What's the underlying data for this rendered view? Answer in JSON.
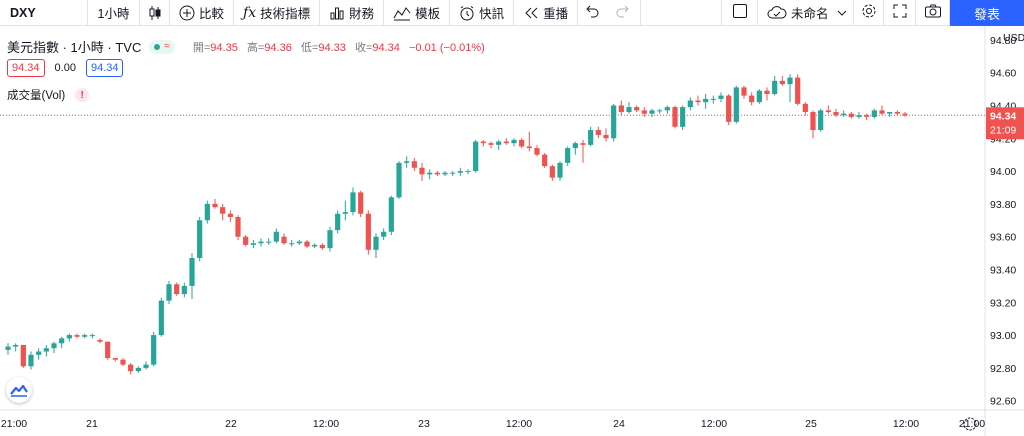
{
  "toolbar": {
    "symbol": "DXY",
    "interval": "1小時",
    "compare": "比較",
    "indicators": "技術指標",
    "financials": "財務",
    "templates": "模板",
    "alert": "快訊",
    "replay": "重播",
    "layout_name": "未命名",
    "publish": "發表"
  },
  "legend": {
    "title": "美元指數 · 1小時 · TVC",
    "open_label": "開=",
    "open": "94.35",
    "high_label": "高=",
    "high": "94.36",
    "low_label": "低=",
    "low": "94.33",
    "close_label": "收=",
    "close": "94.34",
    "change": "−0.01 (−0.01%)",
    "bid": "94.34",
    "spread": "0.00",
    "ask": "94.34",
    "volume_label": "成交量(Vol)",
    "warning": "!"
  },
  "price_axis": {
    "currency": "USD",
    "last_price": "94.34",
    "countdown": "21:09"
  },
  "colors": {
    "up": "#26a69a",
    "down": "#ef5350",
    "accent": "#2962ff"
  },
  "chart_data": {
    "type": "candlestick",
    "ylim": [
      92.58,
      94.86
    ],
    "y_ticks": [
      "94.80",
      "94.60",
      "94.40",
      "94.20",
      "94.00",
      "93.80",
      "93.60",
      "93.40",
      "93.20",
      "93.00",
      "92.80",
      "92.60"
    ],
    "x_ticks": [
      "21:00",
      "21",
      "22",
      "12:00",
      "23",
      "12:00",
      "24",
      "12:00",
      "25",
      "12:00",
      "21:00"
    ],
    "candles": [
      [
        92.91,
        92.95,
        92.88,
        92.93
      ],
      [
        92.93,
        92.95,
        92.9,
        92.94
      ],
      [
        92.94,
        92.94,
        92.8,
        92.81
      ],
      [
        92.81,
        92.9,
        92.79,
        92.88
      ],
      [
        92.88,
        92.92,
        92.85,
        92.9
      ],
      [
        92.9,
        92.94,
        92.87,
        92.92
      ],
      [
        92.92,
        92.96,
        92.89,
        92.95
      ],
      [
        92.95,
        92.99,
        92.92,
        92.98
      ],
      [
        92.98,
        93.01,
        92.96,
        93.0
      ],
      [
        93.0,
        93.01,
        92.98,
        92.99
      ],
      [
        92.99,
        93.01,
        92.98,
        93.0
      ],
      [
        93.0,
        93.01,
        92.98,
        93.0
      ],
      [
        92.97,
        92.98,
        92.95,
        92.96
      ],
      [
        92.96,
        92.96,
        92.85,
        92.86
      ],
      [
        92.86,
        92.86,
        92.84,
        92.85
      ],
      [
        92.85,
        92.86,
        92.81,
        92.82
      ],
      [
        92.82,
        92.83,
        92.76,
        92.78
      ],
      [
        92.78,
        92.81,
        92.77,
        92.8
      ],
      [
        92.8,
        92.84,
        92.79,
        92.82
      ],
      [
        92.82,
        93.02,
        92.81,
        93.0
      ],
      [
        93.0,
        93.23,
        92.99,
        93.21
      ],
      [
        93.21,
        93.33,
        93.19,
        93.31
      ],
      [
        93.31,
        93.32,
        93.24,
        93.25
      ],
      [
        93.25,
        93.32,
        93.23,
        93.3
      ],
      [
        93.3,
        93.5,
        93.22,
        93.47
      ],
      [
        93.47,
        93.72,
        93.45,
        93.7
      ],
      [
        93.7,
        93.82,
        93.68,
        93.8
      ],
      [
        93.8,
        93.83,
        93.77,
        93.78
      ],
      [
        93.78,
        93.8,
        93.7,
        93.74
      ],
      [
        93.74,
        93.76,
        93.69,
        93.72
      ],
      [
        93.72,
        93.73,
        93.58,
        93.6
      ],
      [
        93.6,
        93.61,
        93.54,
        93.55
      ],
      [
        93.55,
        93.58,
        93.53,
        93.56
      ],
      [
        93.56,
        93.59,
        93.54,
        93.57
      ],
      [
        93.57,
        93.59,
        93.55,
        93.57
      ],
      [
        93.57,
        93.65,
        93.56,
        93.63
      ],
      [
        93.6,
        93.62,
        93.55,
        93.56
      ],
      [
        93.56,
        93.58,
        93.54,
        93.56
      ],
      [
        93.56,
        93.58,
        93.55,
        93.57
      ],
      [
        93.57,
        93.58,
        93.53,
        93.54
      ],
      [
        93.54,
        93.56,
        93.53,
        93.55
      ],
      [
        93.55,
        93.56,
        93.52,
        93.53
      ],
      [
        93.53,
        93.66,
        93.51,
        93.64
      ],
      [
        93.64,
        93.76,
        93.62,
        93.74
      ],
      [
        93.74,
        93.82,
        93.7,
        93.75
      ],
      [
        93.75,
        93.9,
        93.73,
        93.87
      ],
      [
        93.87,
        93.88,
        93.72,
        93.74
      ],
      [
        93.74,
        93.76,
        93.49,
        93.52
      ],
      [
        93.52,
        93.62,
        93.47,
        93.6
      ],
      [
        93.6,
        93.65,
        93.58,
        93.63
      ],
      [
        93.63,
        93.85,
        93.61,
        93.84
      ],
      [
        93.84,
        94.06,
        93.83,
        94.05
      ],
      [
        94.05,
        94.09,
        94.02,
        94.06
      ],
      [
        94.06,
        94.08,
        94.0,
        94.02
      ],
      [
        94.02,
        94.05,
        93.94,
        93.98
      ],
      [
        93.98,
        94.01,
        93.95,
        93.99
      ],
      [
        93.99,
        94.0,
        93.97,
        93.98
      ],
      [
        93.98,
        94.0,
        93.97,
        93.99
      ],
      [
        93.99,
        94.0,
        93.97,
        93.99
      ],
      [
        93.99,
        94.02,
        93.97,
        94.0
      ],
      [
        94.0,
        94.01,
        93.98,
        94.0
      ],
      [
        94.0,
        94.19,
        93.99,
        94.18
      ],
      [
        94.18,
        94.19,
        94.15,
        94.17
      ],
      [
        94.17,
        94.18,
        94.14,
        94.16
      ],
      [
        94.16,
        94.19,
        94.13,
        94.18
      ],
      [
        94.18,
        94.2,
        94.16,
        94.17
      ],
      [
        94.17,
        94.2,
        94.15,
        94.19
      ],
      [
        94.19,
        94.2,
        94.14,
        94.15
      ],
      [
        94.15,
        94.24,
        94.12,
        94.14
      ],
      [
        94.14,
        94.16,
        94.09,
        94.1
      ],
      [
        94.1,
        94.11,
        94.02,
        94.03
      ],
      [
        94.03,
        94.04,
        93.94,
        93.96
      ],
      [
        93.96,
        94.06,
        93.94,
        94.05
      ],
      [
        94.05,
        94.15,
        94.03,
        94.14
      ],
      [
        94.14,
        94.18,
        94.1,
        94.17
      ],
      [
        94.17,
        94.19,
        94.05,
        94.16
      ],
      [
        94.16,
        94.27,
        94.15,
        94.25
      ],
      [
        94.25,
        94.27,
        94.2,
        94.22
      ],
      [
        94.22,
        94.26,
        94.18,
        94.2
      ],
      [
        94.2,
        94.41,
        94.18,
        94.4
      ],
      [
        94.4,
        94.43,
        94.34,
        94.36
      ],
      [
        94.36,
        94.42,
        94.35,
        94.39
      ],
      [
        94.39,
        94.4,
        94.36,
        94.37
      ],
      [
        94.37,
        94.39,
        94.33,
        94.35
      ],
      [
        94.35,
        94.38,
        94.33,
        94.37
      ],
      [
        94.37,
        94.38,
        94.35,
        94.37
      ],
      [
        94.37,
        94.4,
        94.35,
        94.39
      ],
      [
        94.39,
        94.4,
        94.26,
        94.27
      ],
      [
        94.27,
        94.4,
        94.25,
        94.39
      ],
      [
        94.39,
        94.45,
        94.37,
        94.43
      ],
      [
        94.43,
        94.46,
        94.4,
        94.42
      ],
      [
        94.42,
        94.47,
        94.38,
        94.44
      ],
      [
        94.44,
        94.46,
        94.41,
        94.44
      ],
      [
        94.44,
        94.48,
        94.42,
        94.46
      ],
      [
        94.46,
        94.47,
        94.28,
        94.3
      ],
      [
        94.3,
        94.52,
        94.29,
        94.51
      ],
      [
        94.51,
        94.52,
        94.44,
        94.46
      ],
      [
        94.46,
        94.48,
        94.4,
        94.42
      ],
      [
        94.42,
        94.5,
        94.41,
        94.49
      ],
      [
        94.49,
        94.51,
        94.43,
        94.47
      ],
      [
        94.47,
        94.58,
        94.46,
        94.55
      ],
      [
        94.55,
        94.58,
        94.52,
        94.53
      ],
      [
        94.53,
        94.59,
        94.42,
        94.57
      ],
      [
        94.57,
        94.59,
        94.4,
        94.41
      ],
      [
        94.41,
        94.42,
        94.34,
        94.36
      ],
      [
        94.36,
        94.37,
        94.2,
        94.25
      ],
      [
        94.25,
        94.38,
        94.24,
        94.37
      ],
      [
        94.37,
        94.4,
        94.35,
        94.36
      ],
      [
        94.36,
        94.38,
        94.33,
        94.34
      ],
      [
        94.34,
        94.37,
        94.33,
        94.35
      ],
      [
        94.35,
        94.36,
        94.32,
        94.33
      ],
      [
        94.33,
        94.36,
        94.32,
        94.34
      ],
      [
        94.34,
        94.35,
        94.31,
        94.33
      ],
      [
        94.33,
        94.38,
        94.32,
        94.37
      ],
      [
        94.37,
        94.4,
        94.34,
        94.35
      ],
      [
        94.35,
        94.36,
        94.33,
        94.36
      ],
      [
        94.36,
        94.37,
        94.34,
        94.35
      ],
      [
        94.35,
        94.36,
        94.33,
        94.34
      ]
    ]
  }
}
